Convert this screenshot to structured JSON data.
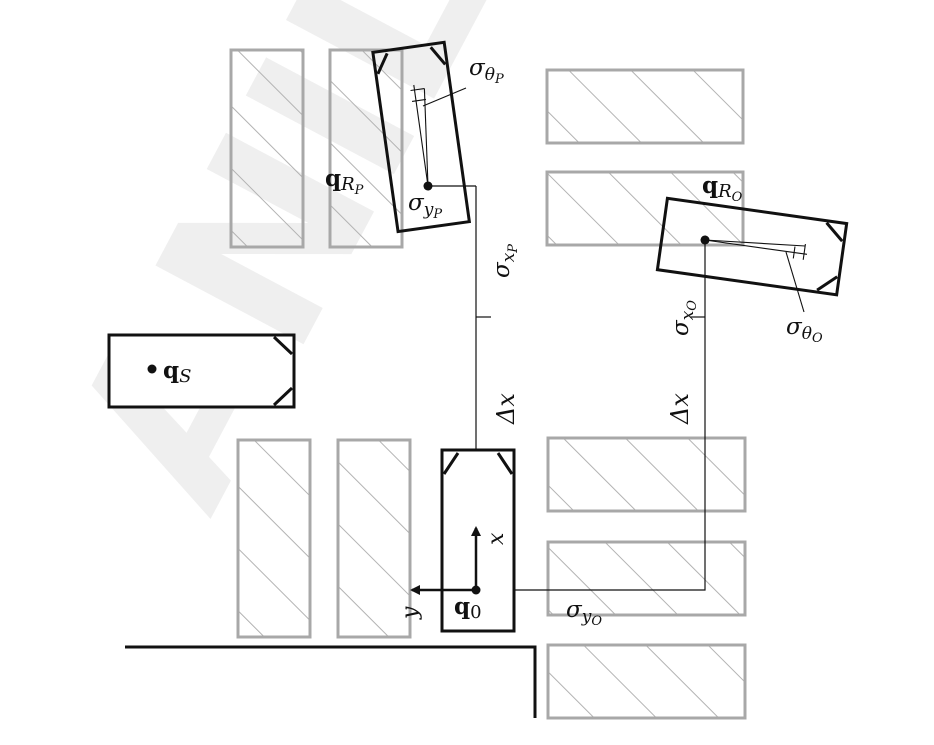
{
  "watermark": "ANIL'S",
  "labels": {
    "q_s_base": "q",
    "q_s_sub": "S",
    "q_0_base": "q",
    "q_0_sub": "0",
    "q_rp_base": "q",
    "q_rp_sub": "R",
    "q_rp_subsub": "P",
    "q_ro_base": "q",
    "q_ro_sub": "R",
    "q_ro_subsub": "O",
    "sigma_theta_p_base": "σ",
    "sigma_theta_p_sub": "θ",
    "sigma_theta_p_subsub": "P",
    "sigma_theta_o_base": "σ",
    "sigma_theta_o_sub": "θ",
    "sigma_theta_o_subsub": "O",
    "sigma_y_p_base": "σ",
    "sigma_y_p_sub": "y",
    "sigma_y_p_subsub": "P",
    "sigma_y_o_base": "σ",
    "sigma_y_o_sub": "y",
    "sigma_y_o_subsub": "O",
    "sigma_x_p_base": "σ",
    "sigma_x_p_sub": "x",
    "sigma_x_p_subsub": "P",
    "sigma_x_o_base": "σ",
    "sigma_x_o_sub": "x",
    "sigma_x_o_subsub": "O",
    "delta_x_left": "Δx",
    "delta_x_right": "Δx",
    "axis_x": "x",
    "axis_y": "y"
  },
  "colors": {
    "obstacle_stroke": "#a8a8a8",
    "robot_stroke": "#111111",
    "watermark": "#ececec"
  }
}
